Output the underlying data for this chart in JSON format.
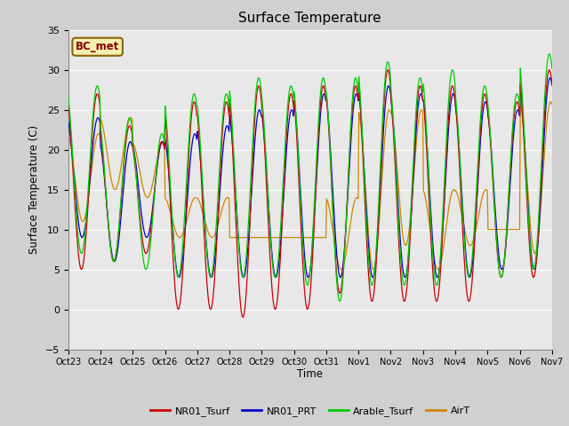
{
  "title": "Surface Temperature",
  "ylabel": "Surface Temperature (C)",
  "xlabel": "Time",
  "annotation": "BC_met",
  "ylim": [
    -5,
    35
  ],
  "series_colors": {
    "NR01_Tsurf": "#cc0000",
    "NR01_PRT": "#0000cc",
    "Arable_Tsurf": "#00cc00",
    "AirT": "#cc8800"
  },
  "series_names": [
    "NR01_Tsurf",
    "NR01_PRT",
    "Arable_Tsurf",
    "AirT"
  ],
  "fig_bg_color": "#d0d0d0",
  "plot_bg_color": "#e8e8e8",
  "title_fontsize": 11,
  "tick_labels": [
    "Oct 23",
    "Oct 24",
    "Oct 25",
    "Oct 26",
    "Oct 27",
    "Oct 28",
    "Oct 29",
    "Oct 30",
    "Oct 31",
    "Nov 1",
    "Nov 2",
    "Nov 3",
    "Nov 4",
    "Nov 5",
    "Nov 6",
    "Nov 7"
  ],
  "yticks": [
    -5,
    0,
    5,
    10,
    15,
    20,
    25,
    30,
    35
  ],
  "n_days": 15,
  "n_per_day": 48,
  "day_peaks_green": [
    28,
    24,
    22,
    27,
    27,
    29,
    28,
    29,
    29,
    31,
    29,
    30,
    28,
    27,
    32
  ],
  "day_mins_green": [
    7,
    6,
    5,
    4,
    4,
    4,
    4,
    3,
    1,
    3,
    3,
    3,
    4,
    4,
    5
  ],
  "day_peaks_red": [
    27,
    23,
    21,
    26,
    26,
    28,
    27,
    28,
    28,
    30,
    28,
    28,
    27,
    26,
    30
  ],
  "day_mins_red": [
    5,
    6,
    7,
    0,
    0,
    -1,
    0,
    0,
    2,
    1,
    1,
    1,
    1,
    4,
    4
  ],
  "day_peaks_blue": [
    24,
    21,
    21,
    22,
    23,
    25,
    25,
    27,
    27,
    28,
    27,
    27,
    26,
    25,
    29
  ],
  "day_mins_blue": [
    9,
    6,
    9,
    4,
    4,
    4,
    4,
    4,
    4,
    4,
    4,
    4,
    4,
    5,
    5
  ],
  "day_peaks_orange": [
    22,
    24,
    21,
    14,
    14,
    9,
    9,
    9,
    14,
    25,
    25,
    15,
    15,
    10,
    26
  ],
  "day_mins_orange": [
    11,
    15,
    14,
    9,
    9,
    9,
    9,
    9,
    5,
    5,
    8,
    5,
    8,
    10,
    7
  ]
}
